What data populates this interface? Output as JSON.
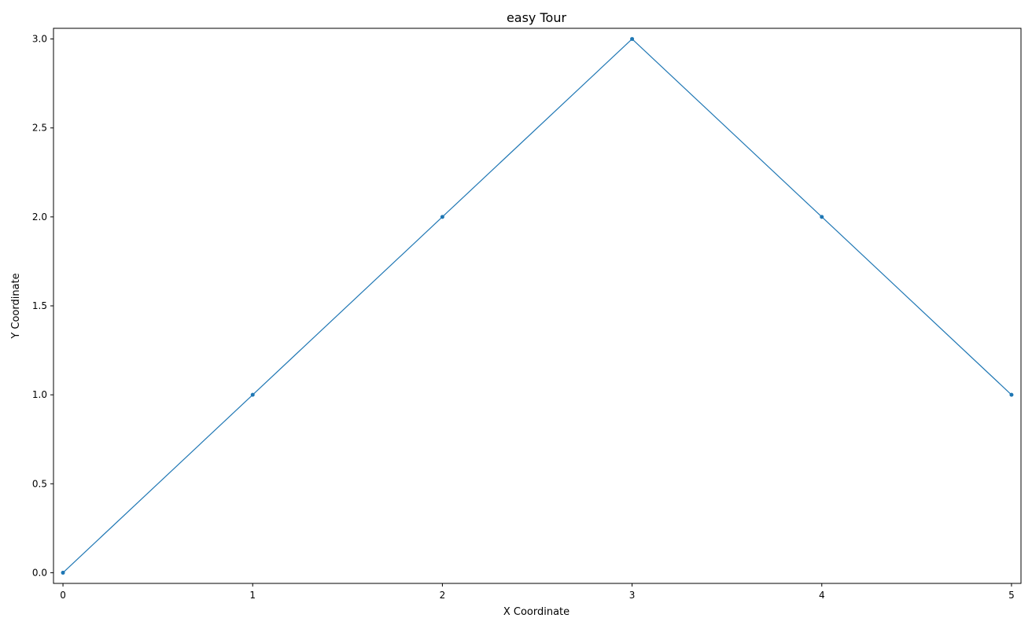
{
  "chart_data": {
    "type": "line",
    "title": "easy Tour",
    "xlabel": "X Coordinate",
    "ylabel": "Y Coordinate",
    "xlim": [
      -0.05,
      5.05
    ],
    "ylim": [
      -0.06,
      3.06
    ],
    "xticks": [
      0,
      1,
      2,
      3,
      4,
      5
    ],
    "yticks": [
      0.0,
      0.5,
      1.0,
      1.5,
      2.0,
      2.5,
      3.0
    ],
    "xtick_labels": [
      "0",
      "1",
      "2",
      "3",
      "4",
      "5"
    ],
    "ytick_labels": [
      "0.0",
      "0.5",
      "1.0",
      "1.5",
      "2.0",
      "2.5",
      "3.0"
    ],
    "grid": false,
    "series": [
      {
        "color": "#1f77b4",
        "x": [
          0,
          1,
          2,
          3,
          4,
          5
        ],
        "y": [
          0,
          1,
          2,
          3,
          2,
          1
        ]
      }
    ]
  }
}
